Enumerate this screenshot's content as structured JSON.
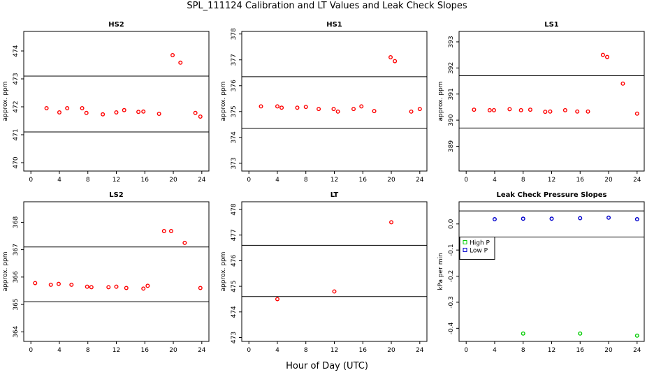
{
  "title": "SPL_111124  Calibration and LT Values and Leak Check Slopes",
  "xlabel": "Hour of Day (UTC)",
  "chart_data": [
    {
      "type": "scatter",
      "title": "HS2",
      "ylabel": "approx. ppm",
      "xlim": [
        -1,
        25
      ],
      "ylim": [
        469.7,
        474.7
      ],
      "xticks": [
        0,
        4,
        8,
        12,
        16,
        20,
        24
      ],
      "yticks": [
        470,
        471,
        472,
        473,
        474
      ],
      "hlines": [
        471.1,
        473.1
      ],
      "series": [
        {
          "color": "#ff0000",
          "x": [
            2.2,
            4,
            5.1,
            7.2,
            7.8,
            10.1,
            12,
            13.1,
            15.1,
            15.8,
            18,
            19.9,
            21,
            23.1,
            23.8
          ],
          "y": [
            471.95,
            471.8,
            471.95,
            471.95,
            471.78,
            471.73,
            471.8,
            471.88,
            471.82,
            471.83,
            471.75,
            473.85,
            473.58,
            471.78,
            471.65
          ]
        }
      ]
    },
    {
      "type": "scatter",
      "title": "HS1",
      "ylabel": "approx. ppm",
      "xlim": [
        -1,
        25
      ],
      "ylim": [
        372.7,
        378.1
      ],
      "xticks": [
        0,
        4,
        8,
        12,
        16,
        20,
        24
      ],
      "yticks": [
        373,
        374,
        375,
        376,
        377,
        378
      ],
      "hlines": [
        374.35,
        376.35
      ],
      "series": [
        {
          "color": "#ff0000",
          "x": [
            1.7,
            4.0,
            4.6,
            6.8,
            8.0,
            9.8,
            11.9,
            12.5,
            14.7,
            15.8,
            17.6,
            19.9,
            20.5,
            22.8,
            24.0
          ],
          "y": [
            375.2,
            375.2,
            375.15,
            375.15,
            375.18,
            375.1,
            375.1,
            375.0,
            375.1,
            375.2,
            375.02,
            377.1,
            376.95,
            375.0,
            375.1
          ]
        }
      ]
    },
    {
      "type": "scatter",
      "title": "LS1",
      "ylabel": "approx. ppm",
      "xlim": [
        -1,
        25
      ],
      "ylim": [
        388.05,
        393.4
      ],
      "xticks": [
        0,
        4,
        8,
        12,
        16,
        20,
        24
      ],
      "yticks": [
        389,
        390,
        391,
        392,
        393
      ],
      "hlines": [
        389.7,
        391.7
      ],
      "series": [
        {
          "color": "#ff0000",
          "x": [
            1.1,
            3.3,
            3.9,
            6.1,
            7.7,
            9.0,
            11.1,
            11.8,
            13.9,
            15.6,
            17.1,
            19.2,
            19.8,
            22.0,
            24.0
          ],
          "y": [
            390.4,
            390.38,
            390.38,
            390.42,
            390.38,
            390.4,
            390.32,
            390.33,
            390.38,
            390.33,
            390.33,
            392.5,
            392.42,
            391.4,
            390.25
          ]
        }
      ]
    },
    {
      "type": "scatter",
      "title": "LS2",
      "ylabel": "approx. ppm",
      "xlim": [
        -1,
        25
      ],
      "ylim": [
        363.65,
        368.75
      ],
      "xticks": [
        0,
        4,
        8,
        12,
        16,
        20,
        24
      ],
      "yticks": [
        364,
        365,
        366,
        367,
        368
      ],
      "hlines": [
        365.1,
        367.1
      ],
      "series": [
        {
          "color": "#ff0000",
          "x": [
            0.6,
            2.8,
            3.9,
            5.7,
            7.9,
            8.5,
            10.9,
            12.0,
            13.4,
            15.8,
            16.4,
            18.7,
            19.7,
            21.6,
            23.8
          ],
          "y": [
            365.78,
            365.72,
            365.75,
            365.72,
            365.65,
            365.63,
            365.63,
            365.65,
            365.6,
            365.58,
            365.68,
            367.68,
            367.68,
            367.25,
            365.6
          ]
        }
      ]
    },
    {
      "type": "scatter",
      "title": "LT",
      "ylabel": "approx. ppm",
      "xlim": [
        -1,
        25
      ],
      "ylim": [
        472.85,
        478.3
      ],
      "xticks": [
        0,
        4,
        8,
        12,
        16,
        20,
        24
      ],
      "yticks": [
        473,
        474,
        475,
        476,
        477,
        478
      ],
      "hlines": [
        474.6,
        476.6
      ],
      "series": [
        {
          "color": "#ff0000",
          "x": [
            4.0,
            12.0,
            20.0
          ],
          "y": [
            474.5,
            474.8,
            477.5
          ]
        }
      ]
    },
    {
      "type": "scatter",
      "title": "Leak Check Pressure Slopes",
      "ylabel": "kPa per min",
      "xlim": [
        -1,
        25
      ],
      "ylim": [
        -0.45,
        0.085
      ],
      "xticks": [
        0,
        4,
        8,
        12,
        16,
        20,
        24
      ],
      "yticks": [
        0.0,
        -0.1,
        -0.2,
        -0.3,
        -0.4
      ],
      "ytick_labels": [
        "0.0",
        "-0.1",
        "-0.2",
        "-0.3",
        "-0.4"
      ],
      "hlines": [
        0.05,
        -0.05
      ],
      "legend": "top-left",
      "series": [
        {
          "name": "High P",
          "color": "#00cc00",
          "x": [
            8,
            16,
            24
          ],
          "y": [
            -0.42,
            -0.42,
            -0.428
          ]
        },
        {
          "name": "Low P",
          "color": "#0000cc",
          "x": [
            4,
            8,
            12,
            16,
            20,
            24
          ],
          "y": [
            0.018,
            0.02,
            0.02,
            0.022,
            0.024,
            0.018
          ]
        }
      ]
    }
  ]
}
